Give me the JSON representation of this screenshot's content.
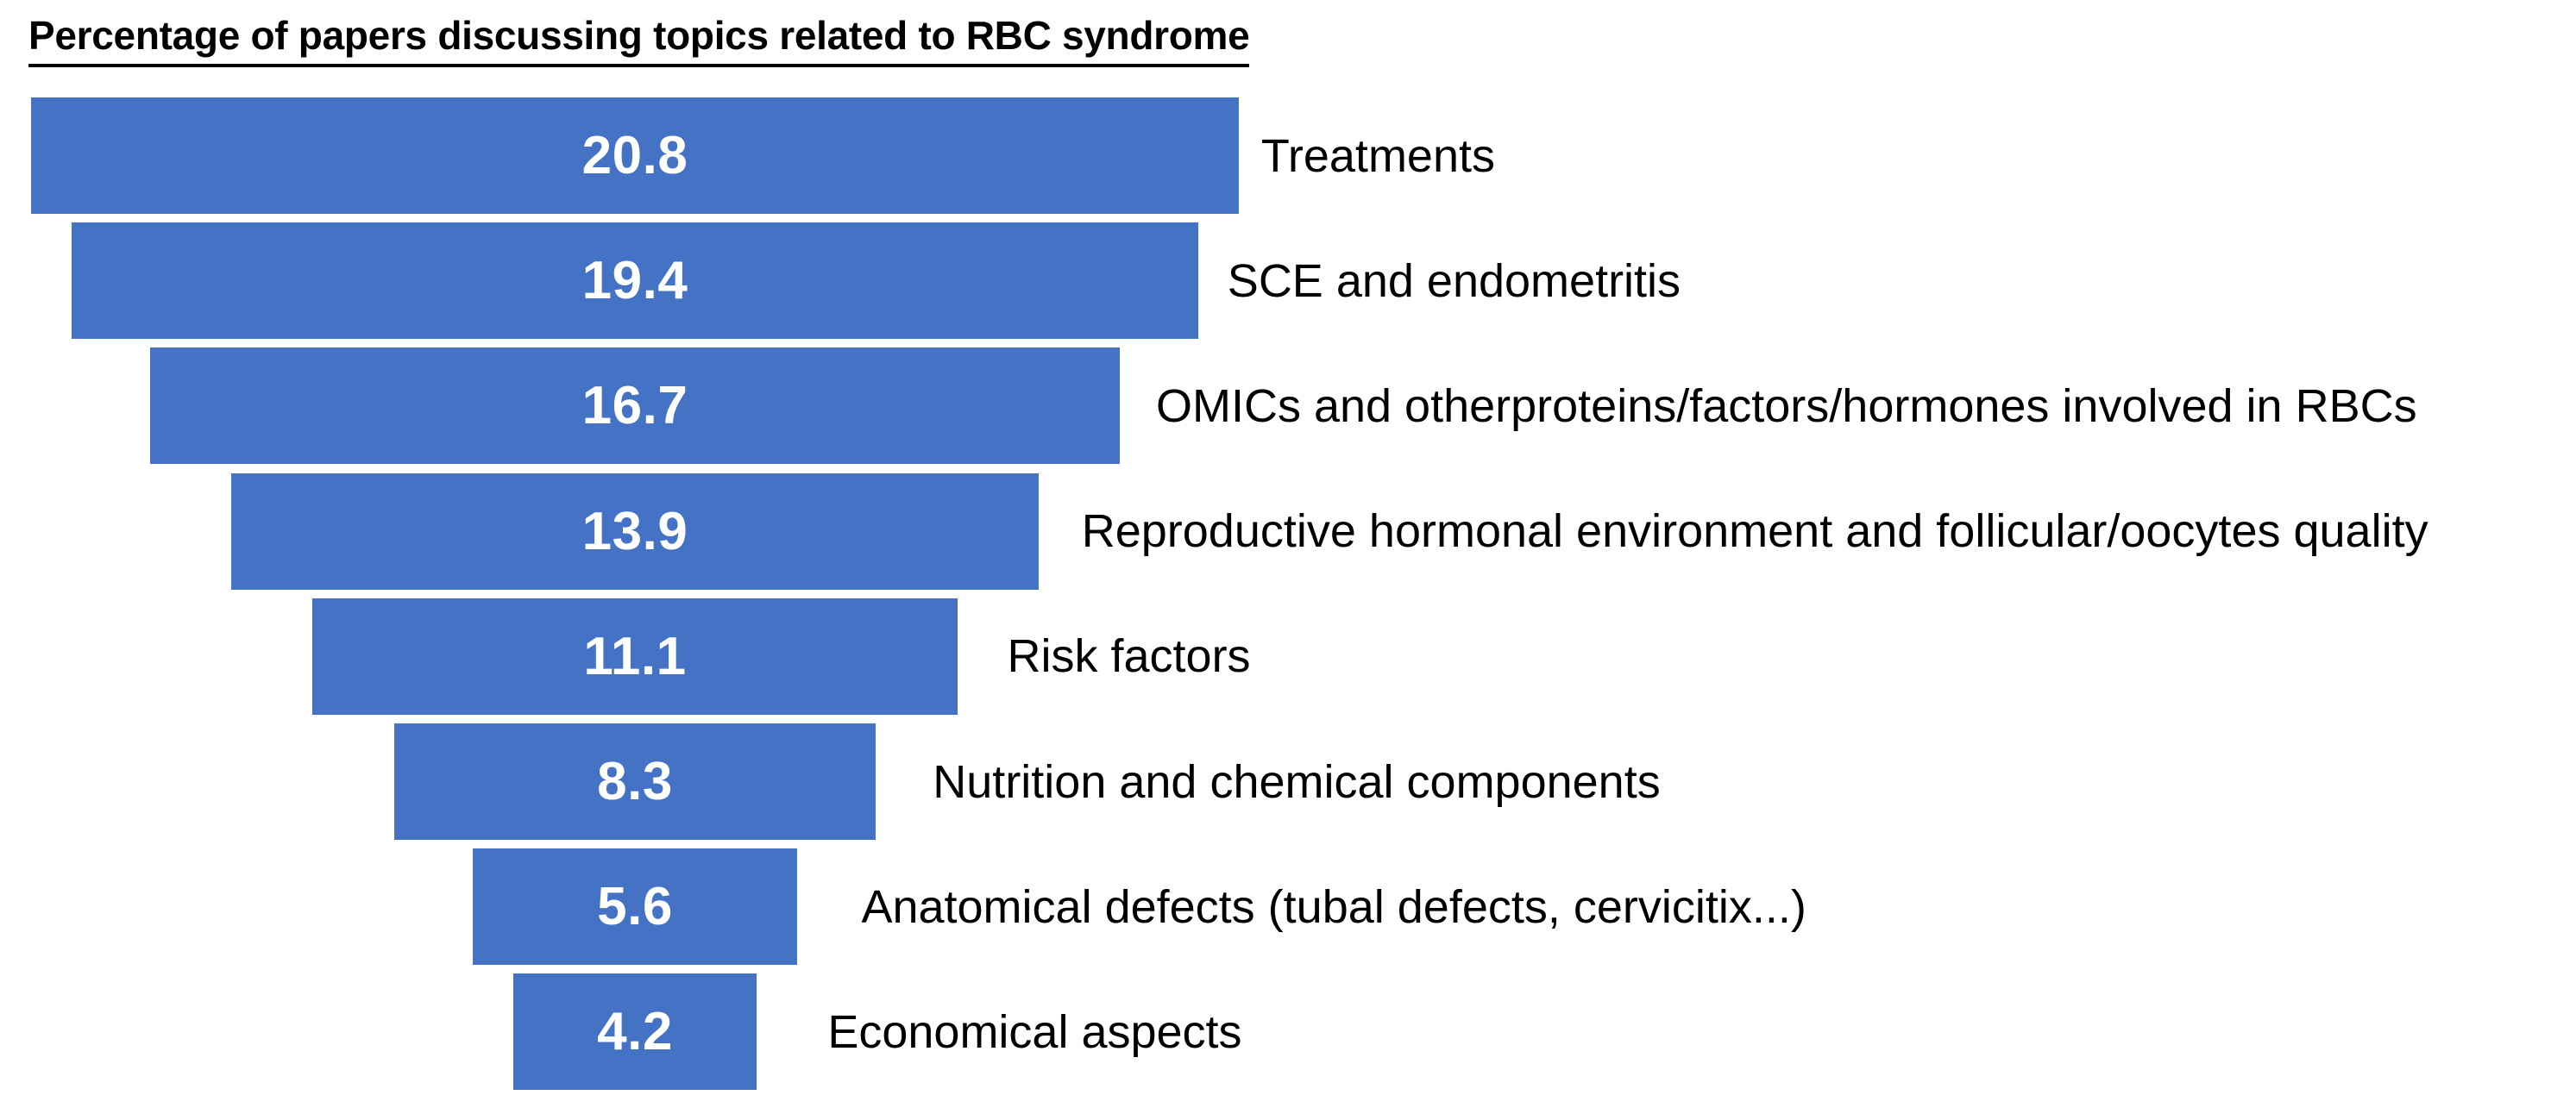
{
  "chart_data": {
    "type": "bar",
    "variant": "centered-funnel",
    "orientation": "horizontal",
    "title": "Percentage of papers discussing topics related to RBC syndrome",
    "categories": [
      "Treatments",
      "SCE and endometritis",
      "OMICs and otherproteins/factors/hormones involved in RBCs",
      "Reproductive hormonal environment and follicular/oocytes quality",
      "Risk factors",
      "Nutrition and chemical components",
      "Anatomical defects (tubal defects, cervicitix...)",
      "Economical aspects"
    ],
    "values": [
      20.8,
      19.4,
      16.7,
      13.9,
      11.1,
      8.3,
      5.6,
      4.2
    ],
    "value_labels": [
      "20.8",
      "19.4",
      "16.7",
      "13.9",
      "11.1",
      "8.3",
      "5.6",
      "4.2"
    ],
    "data_label_position": "inside-center",
    "category_label_position": "right-of-bar",
    "axes": "none",
    "grid": false,
    "legend": "none",
    "bar_color": "#4472C4",
    "value_label_color": "#FFFFFF",
    "category_label_color": "#000000",
    "title_color": "#000000",
    "background_color": "#FFFFFF"
  }
}
